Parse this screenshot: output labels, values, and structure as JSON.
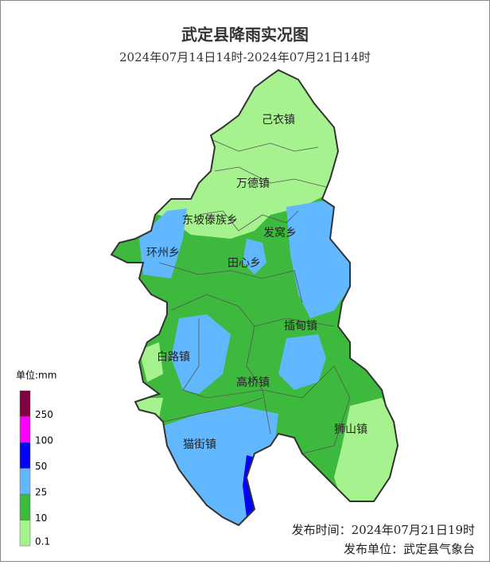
{
  "header": {
    "title": "武定县降雨实况图",
    "subtitle": "2024年07月14日14时-2024年07月21日14时"
  },
  "legend": {
    "unit": "单位:mm",
    "labels": [
      "0.1",
      "10",
      "25",
      "50",
      "100",
      "250"
    ],
    "colors": [
      "#a6f28f",
      "#3db93d",
      "#61b8ff",
      "#0000fe",
      "#fa00fa",
      "#800040"
    ]
  },
  "places": [
    "己衣镇",
    "万德镇",
    "东坡傣族乡",
    "发窝乡",
    "环州乡",
    "田心乡",
    "插甸镇",
    "白路镇",
    "高桥镇",
    "狮山镇",
    "猫街镇"
  ],
  "footer": {
    "time": "发布时间：2024年07月21日19时",
    "unit": "发布单位：武定县气象台"
  }
}
